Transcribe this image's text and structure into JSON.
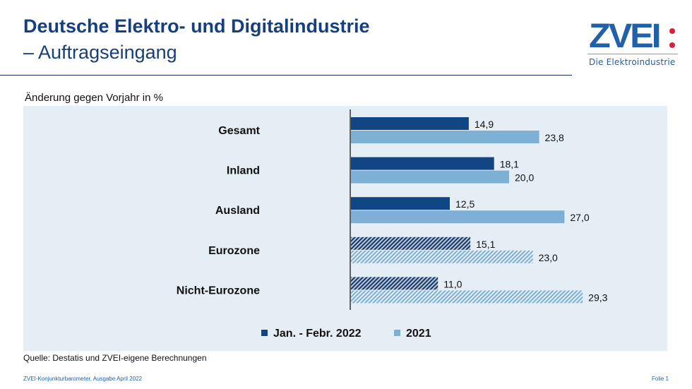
{
  "header": {
    "title_line1": "Deutsche Elektro- und Digitalindustrie",
    "title_line2": "– Auftragseingang"
  },
  "logo": {
    "name": "ZVEI",
    "subtitle": "Die Elektroindustrie",
    "brand_color": "#2261a8",
    "accent_color": "#d9213f"
  },
  "chart_data": {
    "type": "bar",
    "orientation": "horizontal",
    "title": "Änderung gegen Vorjahr in %",
    "xlabel": "",
    "ylabel": "",
    "xlim": [
      0,
      32
    ],
    "grid": false,
    "legend_position": "bottom",
    "categories": [
      "Gesamt",
      "Inland",
      "Ausland",
      "Eurozone",
      "Nicht-Eurozone"
    ],
    "hatched_categories": [
      "Eurozone",
      "Nicht-Eurozone"
    ],
    "series": [
      {
        "name": "Jan. - Febr. 2022",
        "color": "#0f4683",
        "values": [
          14.9,
          18.1,
          12.5,
          15.1,
          11.0
        ],
        "labels": [
          "14,9",
          "18,1",
          "12,5",
          "15,1",
          "11,0"
        ]
      },
      {
        "name": "2021",
        "color": "#7eafd4",
        "values": [
          23.8,
          20.0,
          27.0,
          23.0,
          29.3
        ],
        "labels": [
          "23,8",
          "20,0",
          "27,0",
          "23,0",
          "29,3"
        ]
      }
    ]
  },
  "source": "Quelle: Destatis und ZVEI-eigene Berechnungen",
  "footer": {
    "left": "ZVEI-Konjunkturbarometer, Ausgabe April 2022",
    "right": "Folie 1"
  }
}
